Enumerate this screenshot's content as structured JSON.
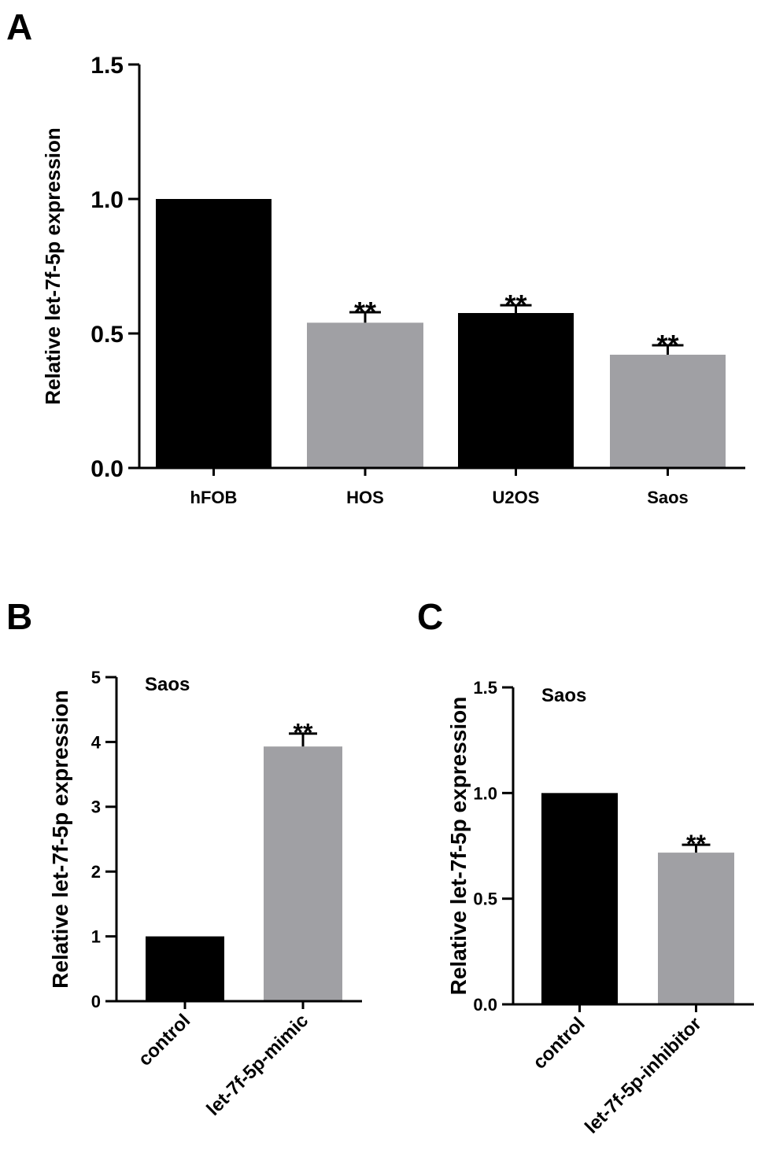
{
  "chart_data": [
    {
      "panel_label": "A",
      "type": "bar",
      "title": "",
      "ylabel": "Relative let-7f-5p expression",
      "xlabel": "",
      "ylim": [
        0,
        1.5
      ],
      "yticks": [
        "0.0",
        "0.5",
        "1.0",
        "1.5"
      ],
      "ytick_values": [
        0,
        0.5,
        1.0,
        1.5
      ],
      "categories": [
        "hFOB",
        "HOS",
        "U2OS",
        "Saos"
      ],
      "values": [
        1.0,
        0.54,
        0.576,
        0.421
      ],
      "error_upper": [
        null,
        0.579,
        0.605,
        0.456
      ],
      "annotations": [
        "",
        "**",
        "**",
        "**"
      ],
      "bar_colors": [
        "#000000",
        "#a0a0a4",
        "#000000",
        "#a0a0a4"
      ],
      "inset_label": ""
    },
    {
      "panel_label": "B",
      "type": "bar",
      "title": "",
      "ylabel": "Relative let-7f-5p expression",
      "xlabel": "",
      "ylim": [
        0,
        5
      ],
      "yticks": [
        "0",
        "1",
        "2",
        "3",
        "4",
        "5"
      ],
      "ytick_values": [
        0,
        1,
        2,
        3,
        4,
        5
      ],
      "categories": [
        "control",
        "let-7f-5p-mimic"
      ],
      "values": [
        1.0,
        3.93
      ],
      "error_upper": [
        null,
        4.13
      ],
      "annotations": [
        "",
        "**"
      ],
      "bar_colors": [
        "#000000",
        "#a0a0a4"
      ],
      "inset_label": "Saos"
    },
    {
      "panel_label": "C",
      "type": "bar",
      "title": "",
      "ylabel": "Relative let-7f-5p expression",
      "xlabel": "",
      "ylim": [
        0,
        1.5
      ],
      "yticks": [
        "0.0",
        "0.5",
        "1.0",
        "1.5"
      ],
      "ytick_values": [
        0,
        0.5,
        1.0,
        1.5
      ],
      "categories": [
        "control",
        "let-7f-5p-inhibitor"
      ],
      "values": [
        1.0,
        0.718
      ],
      "error_upper": [
        null,
        0.755
      ],
      "annotations": [
        "",
        "**"
      ],
      "bar_colors": [
        "#000000",
        "#a0a0a4"
      ],
      "inset_label": "Saos"
    }
  ]
}
